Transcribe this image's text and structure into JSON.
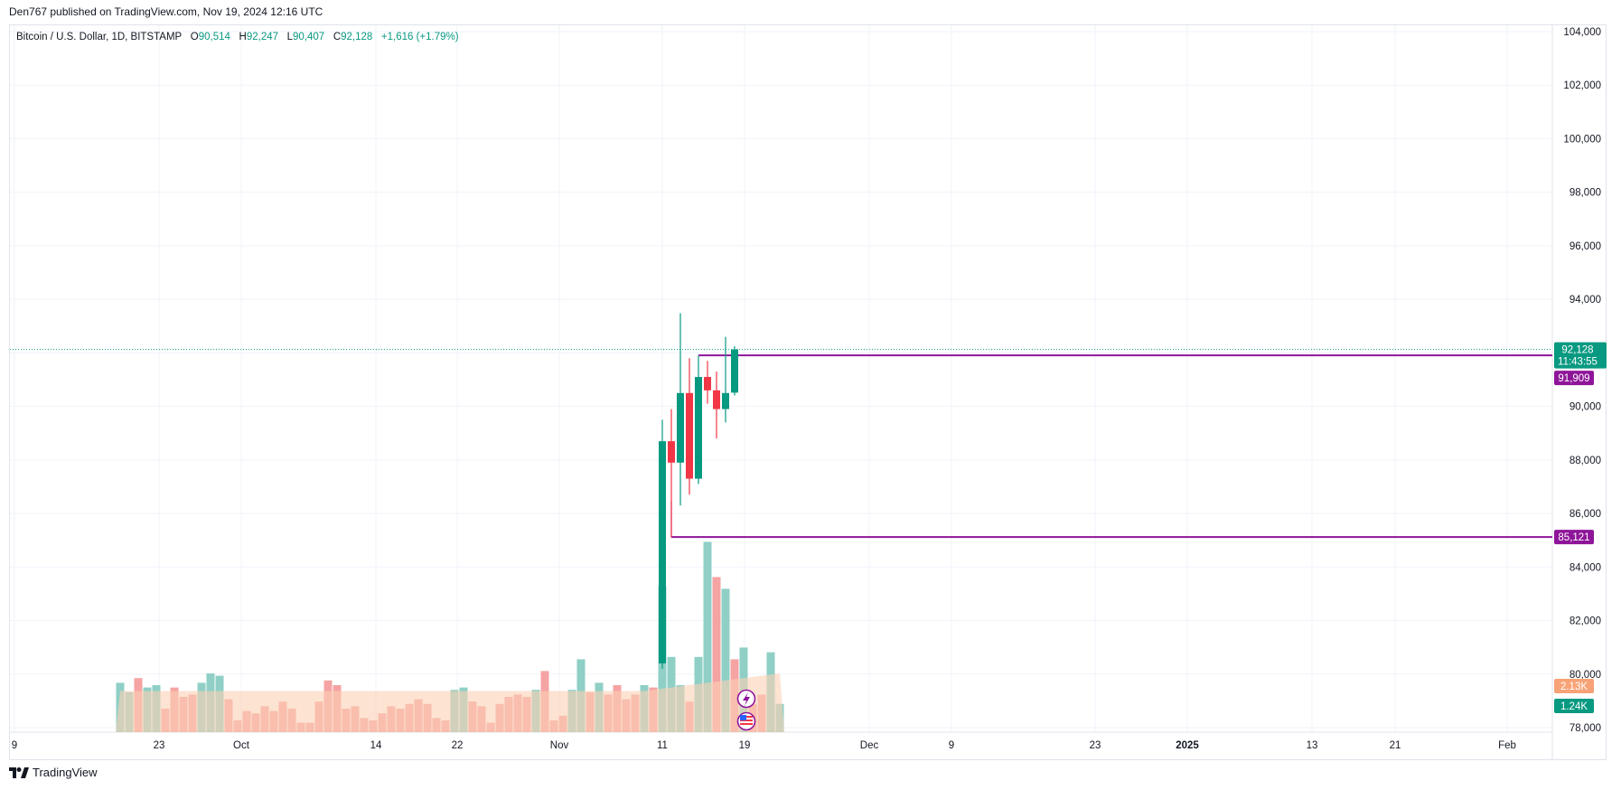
{
  "header": {
    "published": "Den767 published on TradingView.com, Nov 19, 2024 12:16 UTC"
  },
  "legend": {
    "symbol": "Bitcoin / U.S. Dollar, 1D, BITSTAMP",
    "open_label": "O",
    "open": "90,514",
    "high_label": "H",
    "high": "92,247",
    "low_label": "L",
    "low": "90,407",
    "close_label": "C",
    "close": "92,128",
    "change": "+1,616 (+1.79%)"
  },
  "footer": {
    "brand": "TradingView"
  },
  "colors": {
    "up": "#089981",
    "down": "#f23645",
    "vol_up": "#8fcfc6",
    "vol_down": "#f5a3a3",
    "vol_ma_fill": "#fcd0b4",
    "vol_orange": "#f7a377",
    "level_line": "#8e1599",
    "grid": "#f0f3fa",
    "price_line": "#089981"
  },
  "chart_data": {
    "type": "candlestick",
    "y_axis": {
      "ticks": [
        "104,000",
        "102,000",
        "100,000",
        "98,000",
        "96,000",
        "94,000",
        "92,000",
        "90,000",
        "88,000",
        "86,000",
        "84,000",
        "82,000",
        "80,000",
        "78,000"
      ],
      "ylim": [
        77800,
        104500
      ]
    },
    "x_axis": {
      "ticks": [
        "9",
        "23",
        "Oct",
        "14",
        "22",
        "Nov",
        "11",
        "19",
        "Dec",
        "9",
        "23",
        "2025",
        "13",
        "21",
        "Feb"
      ]
    },
    "candles": [
      {
        "date": "Nov 11",
        "open": 80400,
        "high": 89500,
        "low": 80200,
        "close": 88700
      },
      {
        "date": "Nov 12",
        "open": 88700,
        "high": 89900,
        "low": 85100,
        "close": 87900
      },
      {
        "date": "Nov 13",
        "open": 87900,
        "high": 93480,
        "low": 86300,
        "close": 90500
      },
      {
        "date": "Nov 14",
        "open": 90500,
        "high": 91800,
        "low": 86700,
        "close": 87300
      },
      {
        "date": "Nov 15",
        "open": 87300,
        "high": 91900,
        "low": 87100,
        "close": 91100
      },
      {
        "date": "Nov 16",
        "open": 91100,
        "high": 91700,
        "low": 90100,
        "close": 90600
      },
      {
        "date": "Nov 17",
        "open": 90600,
        "high": 91300,
        "low": 88800,
        "close": 89900
      },
      {
        "date": "Nov 18",
        "open": 89900,
        "high": 92600,
        "low": 89400,
        "close": 90500
      },
      {
        "date": "Nov 19",
        "open": 90514,
        "high": 92247,
        "low": 90407,
        "close": 92128
      }
    ],
    "volume": [
      {
        "up": true,
        "v": 2.1
      },
      {
        "up": true,
        "v": 1.7
      },
      {
        "up": false,
        "v": 2.3
      },
      {
        "up": true,
        "v": 1.9
      },
      {
        "up": true,
        "v": 2.0
      },
      {
        "up": false,
        "v": 1.0
      },
      {
        "up": false,
        "v": 1.9
      },
      {
        "up": false,
        "v": 1.5
      },
      {
        "up": false,
        "v": 1.6
      },
      {
        "up": true,
        "v": 2.1
      },
      {
        "up": true,
        "v": 2.5
      },
      {
        "up": true,
        "v": 2.4
      },
      {
        "up": false,
        "v": 1.4
      },
      {
        "up": false,
        "v": 0.5
      },
      {
        "up": false,
        "v": 0.9
      },
      {
        "up": false,
        "v": 0.8
      },
      {
        "up": false,
        "v": 1.1
      },
      {
        "up": false,
        "v": 0.9
      },
      {
        "up": false,
        "v": 1.3
      },
      {
        "up": false,
        "v": 1.0
      },
      {
        "up": false,
        "v": 0.4
      },
      {
        "up": false,
        "v": 0.4
      },
      {
        "up": false,
        "v": 1.3
      },
      {
        "up": false,
        "v": 2.2
      },
      {
        "up": false,
        "v": 2.0
      },
      {
        "up": false,
        "v": 1.0
      },
      {
        "up": false,
        "v": 1.1
      },
      {
        "up": false,
        "v": 0.6
      },
      {
        "up": false,
        "v": 0.5
      },
      {
        "up": false,
        "v": 0.8
      },
      {
        "up": false,
        "v": 1.1
      },
      {
        "up": false,
        "v": 1.0
      },
      {
        "up": false,
        "v": 1.2
      },
      {
        "up": false,
        "v": 1.4
      },
      {
        "up": false,
        "v": 1.2
      },
      {
        "up": false,
        "v": 0.6
      },
      {
        "up": false,
        "v": 0.5
      },
      {
        "up": true,
        "v": 1.8
      },
      {
        "up": true,
        "v": 1.9
      },
      {
        "up": false,
        "v": 1.3
      },
      {
        "up": false,
        "v": 1.1
      },
      {
        "up": false,
        "v": 0.4
      },
      {
        "up": false,
        "v": 1.2
      },
      {
        "up": false,
        "v": 1.5
      },
      {
        "up": false,
        "v": 1.6
      },
      {
        "up": false,
        "v": 1.5
      },
      {
        "up": true,
        "v": 1.8
      },
      {
        "up": false,
        "v": 2.6
      },
      {
        "up": false,
        "v": 0.5
      },
      {
        "up": false,
        "v": 0.7
      },
      {
        "up": true,
        "v": 1.8
      },
      {
        "up": true,
        "v": 3.1
      },
      {
        "up": false,
        "v": 1.7
      },
      {
        "up": true,
        "v": 2.1
      },
      {
        "up": false,
        "v": 1.6
      },
      {
        "up": false,
        "v": 2.0
      },
      {
        "up": false,
        "v": 1.4
      },
      {
        "up": false,
        "v": 1.6
      },
      {
        "up": true,
        "v": 2.0
      },
      {
        "up": false,
        "v": 1.9
      },
      {
        "up": true,
        "v": 6.2
      },
      {
        "up": true,
        "v": 3.2
      },
      {
        "up": true,
        "v": 2.0
      },
      {
        "up": false,
        "v": 1.3
      },
      {
        "up": true,
        "v": 3.2
      },
      {
        "up": true,
        "v": 8.1
      },
      {
        "up": false,
        "v": 6.6
      },
      {
        "up": true,
        "v": 6.1
      },
      {
        "up": false,
        "v": 3.1
      },
      {
        "up": true,
        "v": 3.6
      },
      {
        "up": false,
        "v": 1.2
      },
      {
        "up": false,
        "v": 1.6
      },
      {
        "up": true,
        "v": 3.4
      },
      {
        "up": true,
        "v": 1.2
      }
    ],
    "levels": [
      {
        "label": "91,909",
        "value": 91909,
        "from": "Nov 15"
      },
      {
        "label": "85,121",
        "value": 85121,
        "from": "Nov 12"
      }
    ],
    "price_tag": {
      "value": 92128,
      "label": "92,128",
      "countdown": "11:43:55"
    },
    "volume_tags": [
      {
        "label": "2.13K",
        "kind": "vol_ma"
      },
      {
        "label": "1.24K",
        "kind": "volume"
      }
    ]
  }
}
